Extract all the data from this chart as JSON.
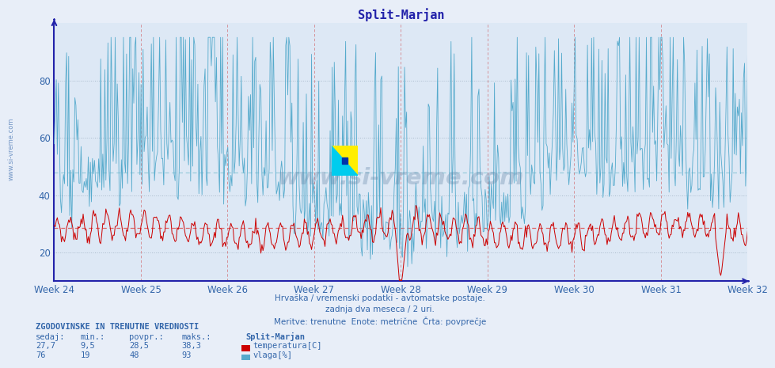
{
  "title": "Split-Marjan",
  "bg_color": "#e8eef8",
  "plot_bg_color": "#dde8f5",
  "temp_color": "#cc0000",
  "humidity_color": "#55aacc",
  "avg_temp_color": "#dd6666",
  "avg_humidity_color": "#99ccdd",
  "temp_avg": 28.5,
  "humidity_avg": 48,
  "temp_min": 9.5,
  "temp_max": 38.3,
  "temp_current": 27.7,
  "humidity_min": 19,
  "humidity_max": 93,
  "humidity_current": 76,
  "week_labels": [
    "Week 24",
    "Week 25",
    "Week 26",
    "Week 27",
    "Week 28",
    "Week 29",
    "Week 30",
    "Week 31",
    "Week 32"
  ],
  "axis_color": "#2222aa",
  "grid_color": "#aabbcc",
  "text_color": "#3366aa",
  "n_points": 672,
  "ylim_min": 10,
  "ylim_max": 100,
  "watermark": "www.si-vreme.com"
}
